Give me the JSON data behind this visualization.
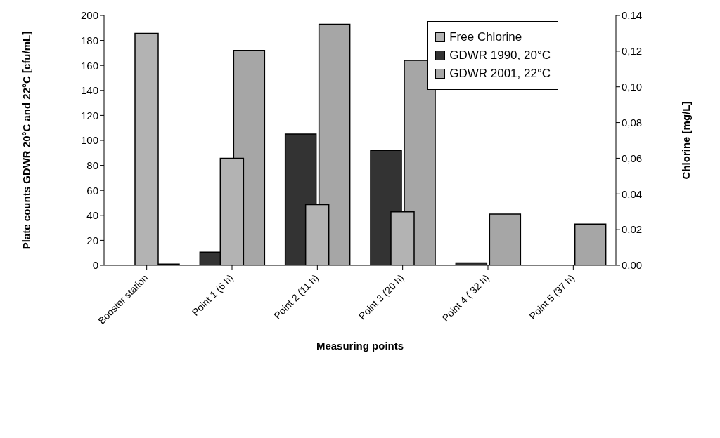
{
  "chart_data": {
    "type": "bar",
    "xlabel": "Measuring points",
    "ylabel": "Plate counts GDWR 20°C and 22°C [cfu/mL]",
    "y2label": "Chlorine [mg/L]",
    "categories": [
      "Booster station",
      "Point 1 (6 h)",
      "Point 2 (11 h)",
      "Point 3 (20 h)",
      "Point  4 ( 32 h)",
      "Point 5 (37 h)"
    ],
    "series": [
      {
        "name": "GDWR 1990, 20°C",
        "color": "#333333",
        "values": [
          null,
          10.5,
          105,
          92,
          2,
          null
        ]
      },
      {
        "name": "GDWR 2001, 22°C",
        "color": "#a6a6a6",
        "values": [
          1,
          172,
          193,
          164,
          41,
          33
        ]
      },
      {
        "name": "Free Chlorine",
        "color": "#b3b3b3",
        "axis": "y2",
        "values": [
          0.13,
          0.06,
          0.034,
          0.03,
          null,
          null
        ]
      }
    ],
    "ylim": [
      0,
      200
    ],
    "yticks": [
      0,
      20,
      40,
      60,
      80,
      100,
      120,
      140,
      160,
      180,
      200
    ],
    "y2lim": [
      0,
      0.14
    ],
    "y2ticks": [
      {
        "value": 0,
        "label": "0,00"
      },
      {
        "value": 0.02,
        "label": "0,02"
      },
      {
        "value": 0.04,
        "label": "0,04"
      },
      {
        "value": 0.06,
        "label": "0,06"
      },
      {
        "value": 0.08,
        "label": "0,08"
      },
      {
        "value": 0.1,
        "label": "0,10"
      },
      {
        "value": 0.12,
        "label": "0,12"
      },
      {
        "value": 0.14,
        "label": "0,14"
      }
    ],
    "grid": false,
    "legend": "top right"
  }
}
